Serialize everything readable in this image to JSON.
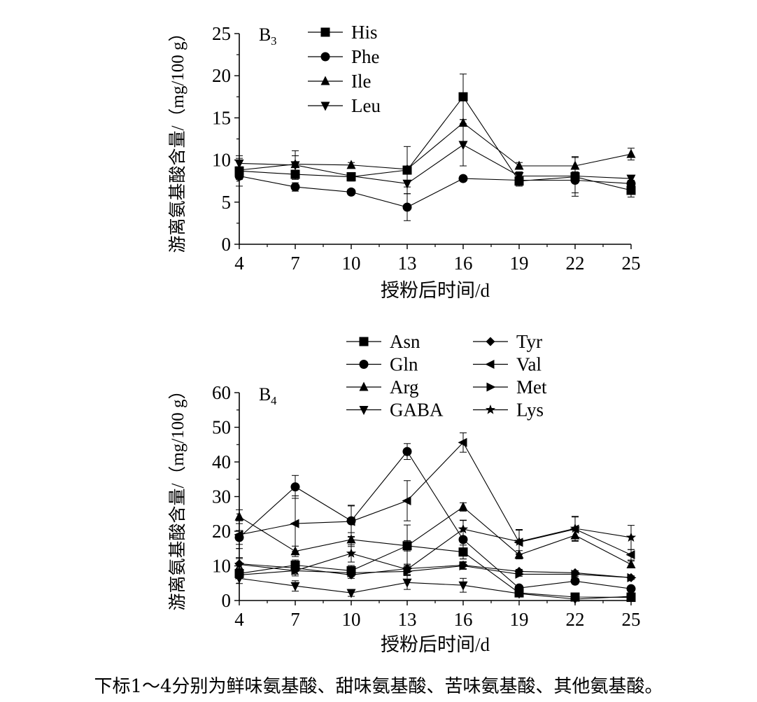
{
  "caption": "下标1～4分别为鲜味氨基酸、甜味氨基酸、苦味氨基酸、其他氨基酸。",
  "chart_data": [
    {
      "type": "line",
      "panel_label": "B",
      "panel_sub": "3",
      "xlabel": "授粉后时间/d",
      "ylabel": "游离氨基酸含量/（mg/100 g）",
      "x": [
        4,
        7,
        10,
        13,
        16,
        19,
        22,
        25
      ],
      "xlim": [
        4,
        25
      ],
      "ylim": [
        0,
        25
      ],
      "yticks": [
        0,
        5,
        10,
        15,
        20,
        25
      ],
      "series": [
        {
          "name": "His",
          "marker": "square",
          "values": [
            8.7,
            8.3,
            8.0,
            8.8,
            17.5,
            7.5,
            8.0,
            6.4
          ],
          "errors": [
            1.8,
            0.5,
            0.5,
            2.8,
            2.7,
            0.6,
            2.3,
            0.8
          ]
        },
        {
          "name": "Phe",
          "marker": "circle",
          "values": [
            8.1,
            6.8,
            6.2,
            4.4,
            7.8,
            7.6,
            7.6,
            7.2
          ],
          "errors": [
            0.4,
            0.5,
            0.3,
            1.6,
            0.3,
            0.3,
            1.5,
            0.4
          ]
        },
        {
          "name": "Ile",
          "marker": "triangle-up",
          "values": [
            8.8,
            9.5,
            9.4,
            8.9,
            14.4,
            9.3,
            9.3,
            10.7
          ],
          "errors": [
            0.4,
            1.0,
            0.3,
            0.3,
            0.4,
            0.4,
            1.1,
            0.7
          ]
        },
        {
          "name": "Leu",
          "marker": "triangle-down",
          "values": [
            9.6,
            9.4,
            8.1,
            7.2,
            11.8,
            8.1,
            8.1,
            7.8
          ],
          "errors": [
            0.6,
            1.7,
            0.3,
            0.4,
            2.5,
            0.5,
            0.5,
            0.4
          ]
        }
      ]
    },
    {
      "type": "line",
      "panel_label": "B",
      "panel_sub": "4",
      "xlabel": "授粉后时间/d",
      "ylabel": "游离氨基酸含量/（mg/100 g）",
      "x": [
        4,
        7,
        10,
        13,
        16,
        19,
        22,
        25
      ],
      "xlim": [
        4,
        25
      ],
      "ylim": [
        0,
        60
      ],
      "yticks": [
        0,
        10,
        20,
        30,
        40,
        50,
        60
      ],
      "series": [
        {
          "name": "Asn",
          "marker": "square",
          "values": [
            7.8,
            10.2,
            8.6,
            15.8,
            14.0,
            2.2,
            1.0,
            0.9
          ],
          "errors": [
            1.5,
            1.5,
            1.5,
            6.0,
            2.0,
            0.5,
            0.4,
            0.3
          ]
        },
        {
          "name": "Gln",
          "marker": "circle",
          "values": [
            18.2,
            32.8,
            23.0,
            43.0,
            17.6,
            3.6,
            5.6,
            3.4
          ],
          "errors": [
            2.0,
            3.3,
            4.5,
            2.3,
            5.6,
            0.6,
            0.8,
            0.4
          ]
        },
        {
          "name": "Arg",
          "marker": "triangle-up",
          "values": [
            24.2,
            14.2,
            17.6,
            15.8,
            27.0,
            13.2,
            18.8,
            10.4
          ],
          "errors": [
            2.0,
            1.5,
            2.0,
            1.5,
            1.2,
            1.2,
            1.5,
            1.0
          ]
        },
        {
          "name": "GABA",
          "marker": "triangle-down",
          "values": [
            6.4,
            4.2,
            2.2,
            5.2,
            4.4,
            2.0,
            0.4,
            1.2
          ],
          "errors": [
            1.5,
            1.5,
            1.0,
            2.0,
            2.0,
            0.5,
            0.2,
            0.3
          ]
        },
        {
          "name": "Tyr",
          "marker": "diamond",
          "values": [
            10.6,
            9.4,
            7.4,
            9.2,
            10.2,
            8.4,
            8.0,
            6.6
          ],
          "errors": [
            1.5,
            1.0,
            1.0,
            1.0,
            1.0,
            0.6,
            0.6,
            0.5
          ]
        },
        {
          "name": "Val",
          "marker": "triangle-left",
          "values": [
            19.0,
            22.2,
            22.8,
            28.8,
            45.6,
            16.8,
            20.6,
            13.2
          ],
          "errors": [
            4.0,
            8.0,
            4.5,
            5.8,
            2.8,
            3.5,
            3.5,
            1.5
          ]
        },
        {
          "name": "Met",
          "marker": "triangle-right",
          "values": [
            7.4,
            8.6,
            8.0,
            8.4,
            10.0,
            7.6,
            7.6,
            6.6
          ],
          "errors": [
            1.0,
            1.0,
            1.0,
            1.0,
            1.0,
            0.6,
            0.6,
            0.5
          ]
        },
        {
          "name": "Lys",
          "marker": "star",
          "values": [
            10.4,
            8.6,
            13.6,
            9.0,
            20.6,
            17.0,
            20.8,
            18.2
          ],
          "errors": [
            2.0,
            1.5,
            2.5,
            1.5,
            2.5,
            3.5,
            3.5,
            3.5
          ]
        }
      ]
    }
  ]
}
